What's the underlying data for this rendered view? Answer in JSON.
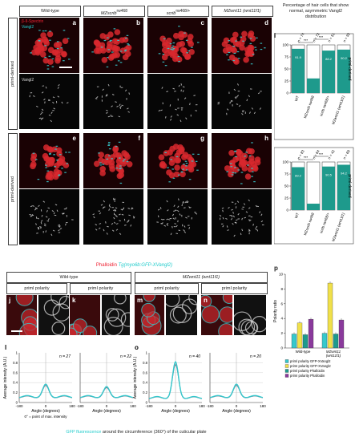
{
  "top": {
    "columns": [
      "Wild-type",
      "MZscrib",
      "scrib",
      "MZwnt11 (wnt11f1)"
    ],
    "column_sup": [
      "",
      "rw468",
      "rw468/+",
      ""
    ],
    "row_labels": [
      "priml-derived",
      "primI-derived"
    ],
    "stain_red": "β-II-Spectrin",
    "stain_cyan": "Vangl2",
    "stain_gray": "Vangl2",
    "panel_letters": [
      "a",
      "b",
      "c",
      "d",
      "e",
      "f",
      "g",
      "h"
    ]
  },
  "panel_i": {
    "letter": "i",
    "title": "Percentage of hair cells that show normal, asymmetric Vangl2 distribution",
    "row_labels": [
      "priml-derived",
      "primI-derived"
    ],
    "categories": [
      "WT",
      "MZscrib rw468",
      "scrib rw468/+",
      "MZwnt11 (wnt11f1)"
    ],
    "significance": "***"
  },
  "middle": {
    "title_red": "Phalloidin",
    "title_cyan": "Tg(myo6b:GFP-XVangl2)",
    "groups": [
      "Wild-type",
      "MZwnt11 (wnt11f1)"
    ],
    "subheads": [
      "priml polarity",
      "primI polarity",
      "priml polarity",
      "primI polarity"
    ],
    "panel_letters": [
      "j",
      "k",
      "m",
      "n"
    ]
  },
  "panel_p": {
    "letter": "p",
    "ylabel": "Polarity ratio",
    "groups": [
      "Wild-type",
      "MZwnt11 (wnt11f1)"
    ],
    "legend": [
      "priml polarity GFP-XVangl2",
      "primI polarity GFP-XVangl2",
      "priml polarity Phalloidin",
      "primI polarity Phalloidin"
    ]
  },
  "bottom": {
    "ylabel": "Average intensity (A.U.)",
    "xlabel": "Angle (degrees)",
    "panel_letters": [
      "l",
      "o"
    ],
    "counts": [
      "n = 27",
      "n = 22",
      "n = 40",
      "n = 20"
    ],
    "note": "0° = point of max. intensity",
    "caption_cyan": "GFP fluorescence",
    "caption_rest": " around the circumference (360°) of the cuticular plate"
  },
  "colors": {
    "red": "#e0323c",
    "cyan": "#36c8cc",
    "teal": "#1e9a8c",
    "yellow": "#f0e04a",
    "purple": "#8a3a9c"
  },
  "chart_data": [
    {
      "type": "bar",
      "title": "Percentage of hair cells that show normal, asymmetric Vangl2 distribution",
      "row": "priml-derived",
      "categories": [
        "WT",
        "MZscrib rw468",
        "scrib rw468/+",
        "MZwnt11 (wnt11f1)"
      ],
      "values": [
        91.9,
        30.3,
        88.2,
        90.2
      ],
      "n": [
        "n = 74",
        "n = 72",
        "n = 51",
        "n = 92"
      ],
      "value_labels": [
        "91.9",
        "30.3",
        "88.2",
        "90.2"
      ],
      "ylim": [
        0,
        100
      ],
      "yticks": [
        0,
        25,
        50,
        75,
        100
      ]
    },
    {
      "type": "bar",
      "row": "primI-derived",
      "categories": [
        "WT",
        "MZscrib rw468",
        "scrib rw468/+",
        "MZwnt11 (wnt11f1)"
      ],
      "values": [
        89.2,
        13.3,
        90.5,
        94.2
      ],
      "n": [
        "n = 83",
        "n = 64",
        "n = 42",
        "n = 69"
      ],
      "value_labels": [
        "89.2",
        "13.3",
        "90.5",
        "94.2"
      ],
      "ylim": [
        0,
        100
      ],
      "yticks": [
        0,
        25,
        50,
        75,
        100
      ]
    },
    {
      "type": "bar",
      "ylabel": "Polarity ratio",
      "categories": [
        "Wild-type",
        "MZwnt11 (wnt11f1)"
      ],
      "series": [
        {
          "name": "priml polarity GFP-XVangl2",
          "values": [
            1.9,
            2.0
          ]
        },
        {
          "name": "primI polarity GFP-XVangl2",
          "values": [
            3.4,
            8.8
          ]
        },
        {
          "name": "priml polarity Phalloidin",
          "values": [
            1.8,
            1.9
          ]
        },
        {
          "name": "primI polarity Phalloidin",
          "values": [
            3.9,
            3.8
          ]
        }
      ],
      "ylim": [
        0,
        10
      ],
      "yticks": [
        0,
        2,
        4,
        6,
        8,
        10
      ]
    },
    {
      "type": "line",
      "xlabel": "Angle (degrees)",
      "ylabel": "Average intensity (A.U.)",
      "panels": [
        {
          "n": "n = 27",
          "peak": 0.35,
          "base": 0.12
        },
        {
          "n": "n = 22",
          "peak": 0.3,
          "base": 0.12
        },
        {
          "n": "n = 40",
          "peak": 0.8,
          "base": 0.1
        },
        {
          "n": "n = 20",
          "peak": 0.35,
          "base": 0.12
        }
      ],
      "xlim": [
        -180,
        180
      ],
      "xticks": [
        -180,
        0,
        180
      ],
      "ylim": [
        0,
        1
      ],
      "yticks": [
        0,
        0.2,
        0.4,
        0.6,
        0.8,
        1.0
      ]
    }
  ]
}
